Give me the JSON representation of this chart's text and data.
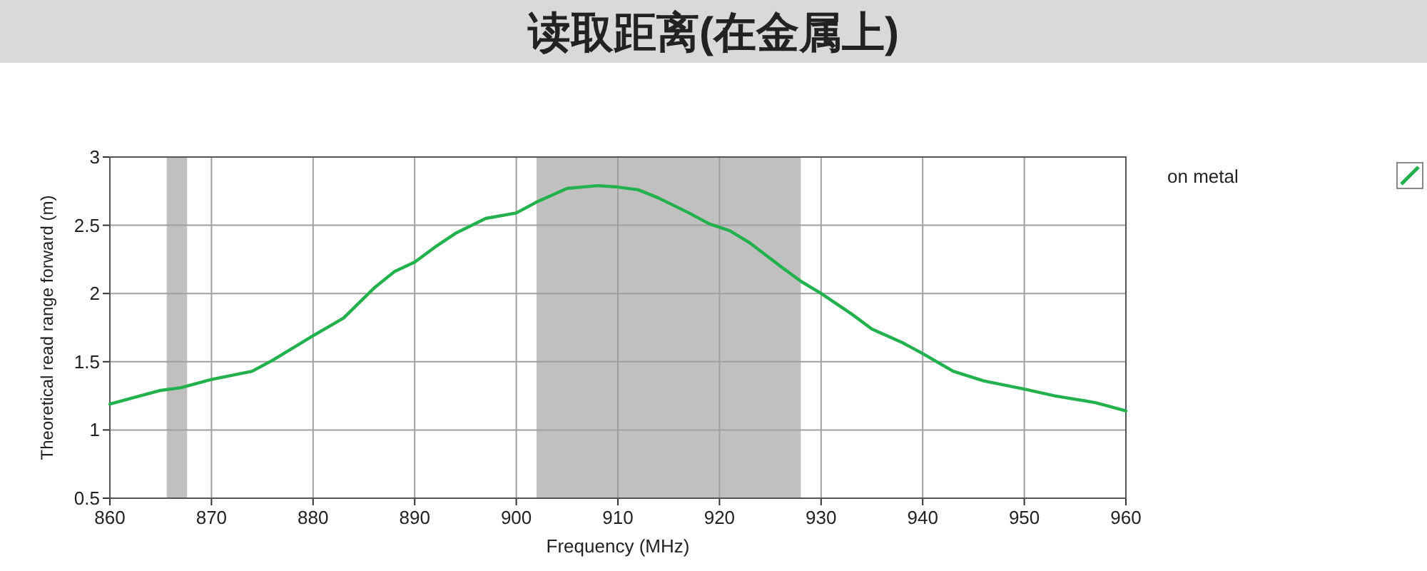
{
  "chart_data": {
    "type": "line",
    "title": "读取距离(在金属上)",
    "xlabel": "Frequency (MHz)",
    "ylabel": "Theoretical read range forward (m)",
    "x": [
      860,
      862,
      865,
      867,
      870,
      874,
      876,
      880,
      883,
      886,
      888,
      890,
      892,
      894,
      897,
      900,
      902,
      905,
      908,
      910,
      912,
      914,
      917,
      919,
      921,
      923,
      926,
      928,
      930,
      933,
      935,
      938,
      940,
      943,
      946,
      950,
      953,
      957,
      960
    ],
    "series": [
      {
        "name": "on metal",
        "color": "#22b14c",
        "values": [
          1.19,
          1.23,
          1.29,
          1.31,
          1.37,
          1.43,
          1.51,
          1.69,
          1.82,
          2.04,
          2.16,
          2.23,
          2.34,
          2.44,
          2.55,
          2.59,
          2.67,
          2.77,
          2.79,
          2.78,
          2.76,
          2.7,
          2.59,
          2.51,
          2.46,
          2.37,
          2.2,
          2.09,
          2.0,
          1.85,
          1.74,
          1.64,
          1.56,
          1.43,
          1.36,
          1.3,
          1.25,
          1.2,
          1.14
        ]
      }
    ],
    "xlim": [
      860,
      960
    ],
    "xticks": [
      860,
      870,
      880,
      890,
      900,
      910,
      920,
      930,
      940,
      950,
      960
    ],
    "ylim": [
      0.5,
      3
    ],
    "yticks": [
      0.5,
      1,
      1.5,
      2,
      2.5,
      3
    ],
    "bands": [
      {
        "axis": "x",
        "from": 865.6,
        "to": 867.6,
        "color": "#c0c0c0"
      },
      {
        "axis": "x",
        "from": 902,
        "to": 928,
        "color": "#c0c0c0"
      }
    ],
    "grid": true,
    "legend": "right",
    "marker": "none",
    "line_style": "solid"
  }
}
